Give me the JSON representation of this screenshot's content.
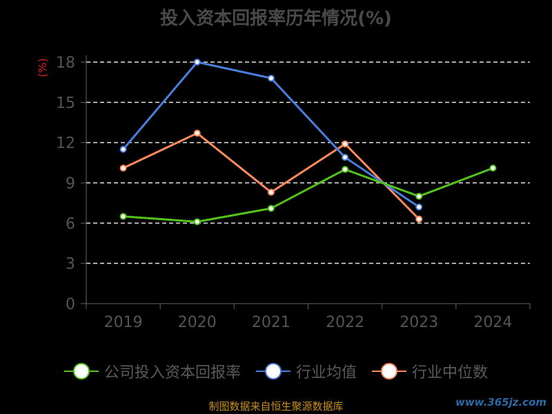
{
  "header": {
    "title": "投入资本回报率历年情况(%)"
  },
  "footer": {
    "source": "制图数据来自恒生聚源数据库",
    "watermark": "www.365jz.com"
  },
  "colors": {
    "company": "#52c41a",
    "industry_avg": "#4a7fe0",
    "industry_median": "#ff8a5c",
    "axis": "#666666",
    "grid": "#e6e6e6",
    "tick_text": "#555555"
  },
  "chart_data": {
    "type": "line",
    "x": [
      "2019",
      "2020",
      "2021",
      "2022",
      "2023",
      "2024"
    ],
    "yticks": [
      0,
      3,
      6,
      9,
      12,
      15,
      18
    ],
    "ylim": [
      0,
      18
    ],
    "ylabel": "(%)",
    "grid": true,
    "legend_position": "bottom",
    "series": [
      {
        "name": "公司投入资本回报率",
        "color_key": "company",
        "values": [
          6.5,
          6.1,
          7.1,
          10.0,
          8.0,
          10.1
        ]
      },
      {
        "name": "行业均值",
        "color_key": "industry_avg",
        "values": [
          11.5,
          18.0,
          16.8,
          10.9,
          7.2,
          null
        ]
      },
      {
        "name": "行业中位数",
        "color_key": "industry_median",
        "values": [
          10.1,
          12.7,
          8.3,
          11.9,
          6.3,
          null
        ]
      }
    ]
  }
}
